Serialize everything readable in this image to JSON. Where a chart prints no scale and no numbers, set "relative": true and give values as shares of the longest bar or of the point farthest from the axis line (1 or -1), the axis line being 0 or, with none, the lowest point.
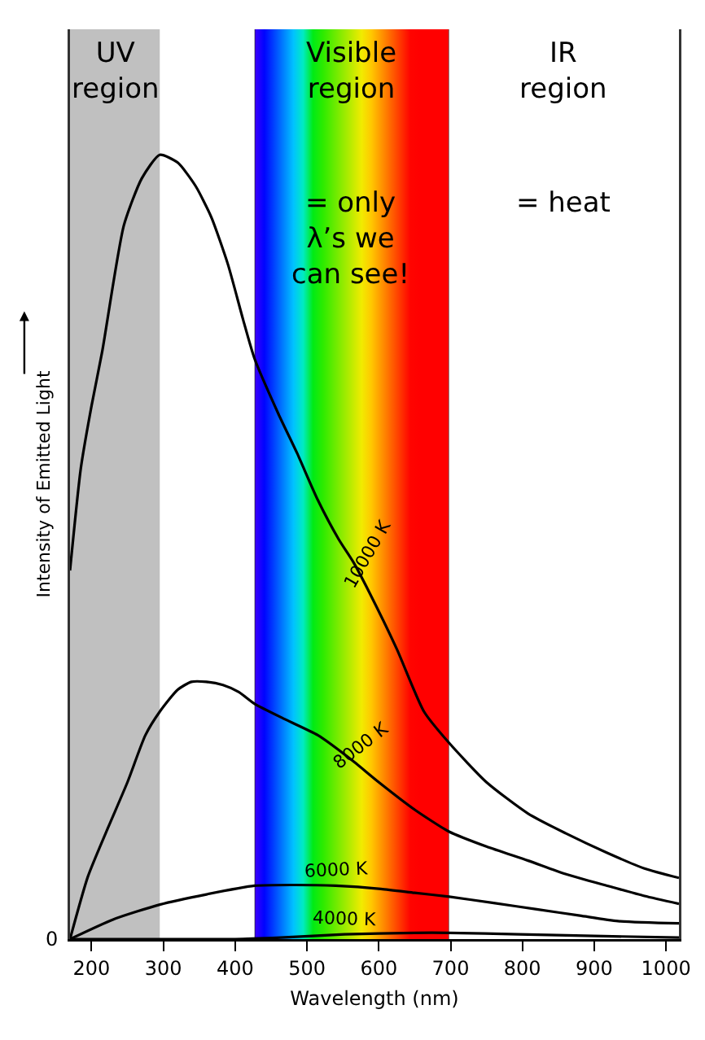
{
  "chart_data": {
    "type": "line",
    "relative": true,
    "xlabel": "Wavelength (nm)",
    "ylabel": "Intensity of Emitted Light",
    "xlim": [
      170,
      1018
    ],
    "xticks": [
      200,
      300,
      400,
      500,
      600,
      700,
      800,
      900,
      1000
    ],
    "grid": false,
    "legend": false,
    "marker": "none",
    "line_style": "solid",
    "series": [
      {
        "name": "10000 K",
        "color": "#000000",
        "x": [
          170,
          185,
          200,
          215,
          245,
          270,
          295,
          320,
          345,
          367,
          390,
          411,
          427,
          460,
          486,
          515,
          544,
          565,
          588,
          625,
          663,
          698,
          750,
          808,
          860,
          918,
          970,
          1018
        ],
        "values": [
          0.47,
          0.6,
          0.68,
          0.75,
          0.91,
          0.97,
          1.0,
          0.99,
          0.96,
          0.92,
          0.86,
          0.79,
          0.74,
          0.67,
          0.62,
          0.56,
          0.51,
          0.48,
          0.44,
          0.37,
          0.29,
          0.25,
          0.2,
          0.16,
          0.135,
          0.11,
          0.09,
          0.078
        ]
      },
      {
        "name": "8000 K",
        "color": "#000000",
        "x": [
          170,
          195,
          222,
          250,
          275,
          295,
          320,
          339,
          360,
          383,
          405,
          427,
          470,
          515,
          560,
          600,
          650,
          698,
          750,
          808,
          860,
          918,
          970,
          1018
        ],
        "values": [
          0,
          0.08,
          0.14,
          0.2,
          0.26,
          0.29,
          0.318,
          0.328,
          0.328,
          0.324,
          0.315,
          0.3,
          0.28,
          0.26,
          0.23,
          0.2,
          0.165,
          0.137,
          0.118,
          0.1,
          0.083,
          0.068,
          0.055,
          0.045
        ]
      },
      {
        "name": "6000 K",
        "color": "#000000",
        "x": [
          170,
          230,
          295,
          360,
          427,
          480,
          540,
          603,
          650,
          698,
          760,
          820,
          880,
          933,
          1018
        ],
        "values": [
          0,
          0.025,
          0.044,
          0.057,
          0.068,
          0.069,
          0.068,
          0.064,
          0.059,
          0.054,
          0.046,
          0.038,
          0.03,
          0.023,
          0.02
        ]
      },
      {
        "name": "4000 K",
        "color": "#000000",
        "x": [
          170,
          300,
          400,
          463,
          552,
          650,
          698,
          795,
          900,
          1018
        ],
        "values": [
          0,
          0,
          0,
          0.002,
          0.006,
          0.008,
          0.008,
          0.006,
          0.004,
          0.002
        ]
      }
    ],
    "bands": [
      {
        "axis": "x",
        "from": 170,
        "to": 295,
        "label": "UV region",
        "color": "#c0c0c0"
      },
      {
        "axis": "x",
        "from": 427,
        "to": 698,
        "label": "Visible region"
      },
      {
        "axis": "x",
        "from": 698,
        "to": 1018,
        "label": "IR region",
        "color": "#ffffff"
      }
    ],
    "annotations": [
      "= only λ’s we can see!",
      "= heat",
      "0"
    ]
  }
}
